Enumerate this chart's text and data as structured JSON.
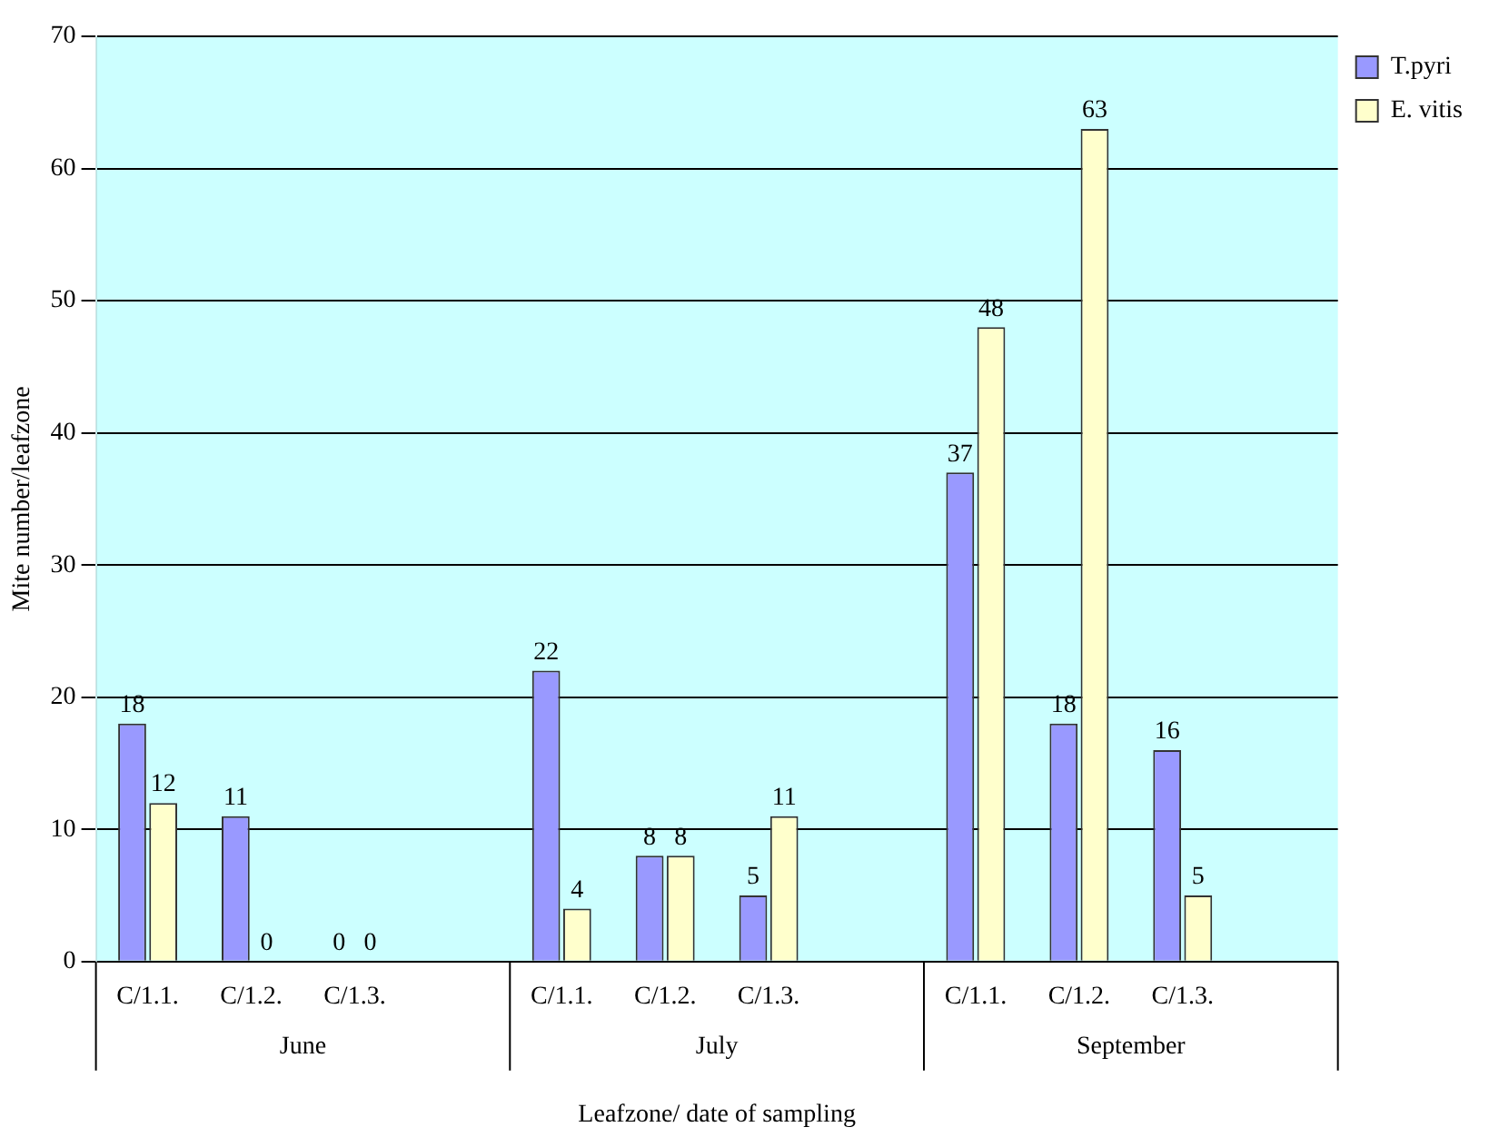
{
  "chart_data": {
    "type": "bar",
    "xlabel": "Leafzone/ date of sampling",
    "ylabel": "Mite number/leafzone",
    "categories": [
      "C/1.1.",
      "C/1.2.",
      "C/1.3.",
      null,
      "C/1.1.",
      "C/1.2.",
      "C/1.3.",
      null,
      "C/1.1.",
      "C/1.2.",
      "C/1.3.",
      null
    ],
    "series": [
      {
        "name": "T.pyri",
        "color": "#9999ff",
        "values": [
          18,
          11,
          0,
          null,
          22,
          8,
          5,
          null,
          37,
          18,
          16,
          null
        ]
      },
      {
        "name": "E. vitis",
        "color": "#ffffcc",
        "values": [
          12,
          0,
          0,
          null,
          4,
          8,
          11,
          null,
          48,
          63,
          5,
          null
        ]
      }
    ],
    "annotations": [
      "June",
      "July",
      "September"
    ],
    "ylim": [
      0,
      70
    ],
    "yticks": [
      0,
      10,
      20,
      30,
      40,
      50,
      60,
      70
    ],
    "grid": "y",
    "legend": "right",
    "data_labels": true
  }
}
